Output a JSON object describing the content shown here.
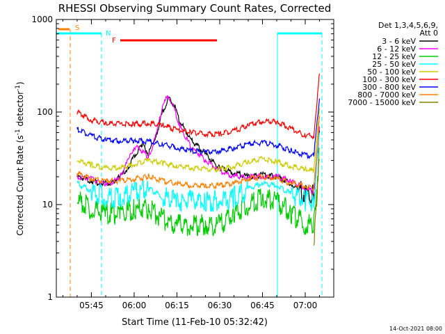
{
  "chart_data": {
    "type": "line",
    "title": "RHESSI Observing Summary Count Rates, Corrected",
    "xlabel": "Start Time (11-Feb-10 05:32:42)",
    "ylabel": "Corrected Count Rate (s",
    "ylabel_sup": "-1",
    "ylabel_mid": " detector",
    "ylabel_end": ")",
    "y_scale": "log",
    "ylim": [
      1,
      1000
    ],
    "xlim": [
      "05:32:42",
      "07:10:00"
    ],
    "x_ticks": [
      "05:45",
      "06:00",
      "06:15",
      "06:30",
      "06:45",
      "07:00"
    ],
    "y_ticks": [
      "1",
      "10",
      "100",
      "1000"
    ],
    "legend_title": "Det 1,3,4,5,6,9,",
    "legend_subtitle": "Att 0",
    "legend_position": "right",
    "series": [
      {
        "name": "3 - 6 keV",
        "color": "#000000",
        "x": [
          "05:40",
          "05:45",
          "05:48",
          "05:52",
          "05:55",
          "05:58",
          "06:00",
          "06:03",
          "06:05",
          "06:08",
          "06:10",
          "06:12",
          "06:14",
          "06:16",
          "06:20",
          "06:25",
          "06:30",
          "06:35",
          "06:40",
          "06:45",
          "06:50",
          "06:55",
          "06:58",
          "07:00",
          "07:03",
          "07:05"
        ],
        "y": [
          20,
          18,
          17,
          17,
          20,
          25,
          33,
          45,
          35,
          60,
          100,
          140,
          120,
          80,
          50,
          35,
          25,
          22,
          20,
          21,
          20,
          17,
          14,
          13,
          13,
          60
        ]
      },
      {
        "name": "6 - 12 keV",
        "color": "#ff00ff",
        "x": [
          "05:40",
          "05:45",
          "05:48",
          "05:52",
          "05:55",
          "05:58",
          "06:00",
          "06:02",
          "06:05",
          "06:08",
          "06:10",
          "06:12",
          "06:14",
          "06:16",
          "06:20",
          "06:25",
          "06:30",
          "06:35",
          "06:40",
          "06:45",
          "06:50",
          "06:55",
          "07:00",
          "07:03",
          "07:05"
        ],
        "y": [
          20,
          19,
          17,
          17,
          20,
          30,
          42,
          40,
          32,
          60,
          120,
          150,
          110,
          70,
          42,
          30,
          23,
          20,
          20,
          20,
          20,
          18,
          15,
          14,
          70
        ]
      },
      {
        "name": "12 - 25 keV",
        "color": "#00cc00",
        "x": [
          "05:40",
          "05:45",
          "05:50",
          "05:55",
          "06:00",
          "06:05",
          "06:10",
          "06:15",
          "06:20",
          "06:25",
          "06:30",
          "06:35",
          "06:40",
          "06:45",
          "06:50",
          "06:55",
          "07:00",
          "07:03",
          "07:05"
        ],
        "y": [
          11,
          9,
          8,
          8,
          9,
          9,
          7,
          6,
          6,
          6,
          6,
          8,
          10,
          12,
          11,
          8,
          6,
          6,
          40
        ]
      },
      {
        "name": "25 - 50 keV",
        "color": "#00ffff",
        "x": [
          "05:40",
          "05:45",
          "05:50",
          "05:55",
          "06:00",
          "06:05",
          "06:10",
          "06:15",
          "06:20",
          "06:25",
          "06:30",
          "06:35",
          "06:40",
          "06:45",
          "06:50",
          "06:55",
          "07:00",
          "07:03",
          "07:05"
        ],
        "y": [
          17,
          14,
          12,
          12,
          14,
          15,
          12,
          11,
          11,
          11,
          11,
          12,
          15,
          17,
          16,
          13,
          11,
          11,
          60
        ]
      },
      {
        "name": "50 - 100 keV",
        "color": "#cccc00",
        "x": [
          "05:40",
          "05:45",
          "05:50",
          "05:55",
          "06:00",
          "06:05",
          "06:10",
          "06:15",
          "06:20",
          "06:25",
          "06:30",
          "06:35",
          "06:40",
          "06:45",
          "06:50",
          "06:55",
          "07:00",
          "07:03",
          "07:05"
        ],
        "y": [
          30,
          27,
          25,
          25,
          27,
          30,
          28,
          26,
          25,
          24,
          24,
          26,
          29,
          31,
          29,
          26,
          24,
          23,
          110
        ]
      },
      {
        "name": "100 - 300 keV",
        "color": "#ff0000",
        "x": [
          "05:40",
          "05:45",
          "05:50",
          "05:55",
          "06:00",
          "06:05",
          "06:10",
          "06:15",
          "06:20",
          "06:25",
          "06:30",
          "06:35",
          "06:40",
          "06:45",
          "06:50",
          "06:55",
          "07:00",
          "07:03",
          "07:05"
        ],
        "y": [
          100,
          82,
          76,
          74,
          74,
          76,
          72,
          64,
          60,
          58,
          58,
          62,
          72,
          80,
          78,
          66,
          56,
          55,
          260
        ]
      },
      {
        "name": "300 - 800 keV",
        "color": "#0000ff",
        "x": [
          "05:40",
          "05:45",
          "05:50",
          "05:55",
          "06:00",
          "06:05",
          "06:10",
          "06:15",
          "06:20",
          "06:25",
          "06:30",
          "06:35",
          "06:40",
          "06:45",
          "06:50",
          "06:55",
          "07:00",
          "07:03",
          "07:05"
        ],
        "y": [
          65,
          55,
          50,
          49,
          49,
          48,
          45,
          41,
          38,
          37,
          38,
          41,
          45,
          47,
          44,
          38,
          34,
          34,
          140
        ]
      },
      {
        "name": "800 - 7000 keV",
        "color": "#ff8000",
        "x": [
          "05:40",
          "05:45",
          "05:50",
          "05:55",
          "06:00",
          "06:05",
          "06:10",
          "06:15",
          "06:20",
          "06:25",
          "06:30",
          "06:35",
          "06:40",
          "06:45",
          "06:50",
          "06:55",
          "07:00",
          "07:03",
          "07:05"
        ],
        "y": [
          22,
          19,
          18,
          18,
          19,
          20,
          18,
          17,
          16,
          16,
          16,
          17,
          19,
          20,
          19,
          17,
          16,
          15,
          90
        ]
      },
      {
        "name": "7000 - 15000 keV",
        "color": "#808000",
        "x": [
          "07:03",
          "07:04",
          "07:05"
        ],
        "y": [
          3,
          10,
          30
        ]
      }
    ],
    "annotations": [
      {
        "label": "S",
        "color": "#ff8000"
      },
      {
        "label": "N",
        "color": "#00ffff"
      },
      {
        "label": "F",
        "color": "#ff0000"
      }
    ]
  },
  "timestamp": "14-Oct-2021 08:00"
}
